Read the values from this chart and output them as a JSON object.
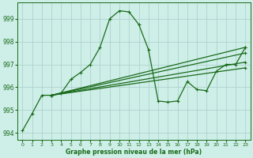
{
  "xlabel": "Graphe pression niveau de la mer (hPa)",
  "background_color": "#ceeee8",
  "grid_color": "#a8cfc8",
  "line_color": "#1a6b1a",
  "xlim": [
    -0.5,
    23.5
  ],
  "ylim": [
    993.7,
    999.7
  ],
  "yticks": [
    994,
    995,
    996,
    997,
    998,
    999
  ],
  "xticks": [
    0,
    1,
    2,
    3,
    4,
    5,
    6,
    7,
    8,
    9,
    10,
    11,
    12,
    13,
    14,
    15,
    16,
    17,
    18,
    19,
    20,
    21,
    22,
    23
  ],
  "main_line": [
    994.1,
    994.85,
    995.65,
    995.65,
    995.75,
    996.35,
    996.65,
    997.0,
    997.75,
    999.0,
    999.35,
    999.3,
    998.75,
    997.65,
    995.4,
    995.35,
    995.4,
    996.25,
    995.9,
    995.85,
    996.7,
    997.0,
    997.0,
    997.75
  ],
  "fan_line1": [
    995.65,
    997.75
  ],
  "fan_line1_x": [
    3,
    23
  ],
  "fan_line2": [
    995.65,
    997.75
  ],
  "fan_line2_x": [
    3,
    23
  ],
  "fan_lines": [
    {
      "x": [
        3,
        23
      ],
      "y": [
        995.65,
        997.75
      ]
    },
    {
      "x": [
        3,
        23
      ],
      "y": [
        995.65,
        997.5
      ]
    },
    {
      "x": [
        3,
        23
      ],
      "y": [
        995.65,
        997.1
      ]
    },
    {
      "x": [
        3,
        23
      ],
      "y": [
        995.65,
        996.85
      ]
    }
  ],
  "figsize": [
    3.2,
    2.0
  ],
  "dpi": 100
}
